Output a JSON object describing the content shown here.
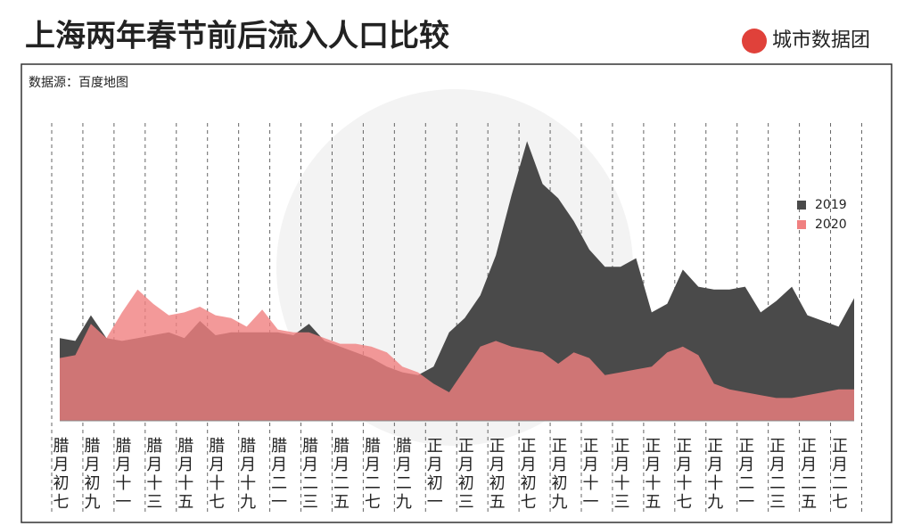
{
  "chart_data": {
    "type": "area",
    "title": "上海两年春节前后流入人口比较",
    "brand": "城市数据团",
    "source": "数据源：百度地图",
    "categories": [
      "腊月初七",
      null,
      "腊月初九",
      null,
      "腊月十一",
      null,
      "腊月十三",
      null,
      "腊月十五",
      null,
      "腊月十七",
      null,
      "腊月十九",
      null,
      "腊月二一",
      null,
      "腊月二三",
      null,
      "腊月二五",
      null,
      "腊月二七",
      null,
      "腊月二九",
      null,
      "正月初一",
      null,
      "正月初三",
      null,
      "正月初五",
      null,
      "正月初七",
      null,
      "正月初九",
      null,
      "正月十一",
      null,
      "正月十三",
      null,
      "正月十五",
      null,
      "正月十七",
      null,
      "正月十九",
      null,
      "正月二一",
      null,
      "正月二三",
      null,
      "正月二五",
      null,
      "正月二七",
      null
    ],
    "series": [
      {
        "name": "2019",
        "color": "#4a4a4a",
        "values": [
          29,
          28,
          37,
          29,
          28,
          29,
          30,
          31,
          29,
          35,
          30,
          31,
          31,
          31,
          31,
          30,
          34,
          28,
          26,
          24,
          22,
          19,
          17,
          16,
          19,
          31,
          36,
          44,
          58,
          79,
          98,
          83,
          78,
          70,
          60,
          54,
          54,
          57,
          38,
          41,
          53,
          47,
          46,
          46,
          47,
          38,
          42,
          47,
          37,
          35,
          33,
          43
        ]
      },
      {
        "name": "2020",
        "color": "#f08080",
        "values": [
          22,
          23,
          34,
          29,
          38,
          46,
          41,
          37,
          38,
          40,
          37,
          36,
          33,
          39,
          32,
          31,
          31,
          29,
          27,
          27,
          26,
          24,
          19,
          17,
          13,
          10,
          18,
          26,
          28,
          26,
          25,
          24,
          20,
          24,
          22,
          16,
          17,
          18,
          19,
          24,
          26,
          23,
          13,
          11,
          10,
          9,
          8,
          8,
          9,
          10,
          11,
          11
        ]
      }
    ],
    "ylim": [
      0,
      100
    ],
    "legend": "right"
  }
}
